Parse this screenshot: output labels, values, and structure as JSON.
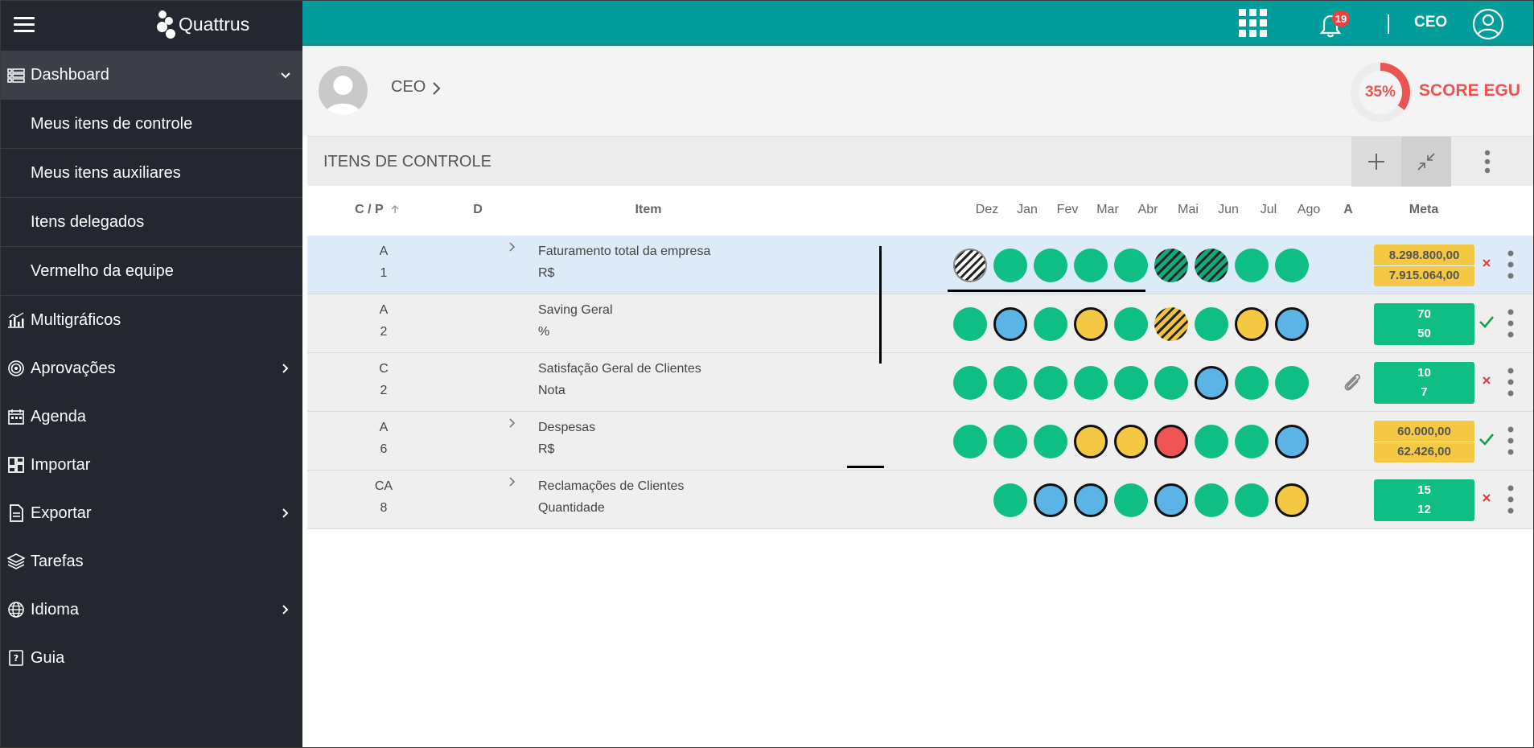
{
  "app": {
    "logo_text": "Quattrus"
  },
  "sidebar": {
    "items": [
      {
        "label": "Dashboard",
        "icon": "list-icon",
        "expanded": true
      },
      {
        "label": "Multigráficos",
        "icon": "bar-chart-icon"
      },
      {
        "label": "Aprovações",
        "icon": "target-icon",
        "chevron": true
      },
      {
        "label": "Agenda",
        "icon": "calendar-icon"
      },
      {
        "label": "Importar",
        "icon": "dashboard-grid-icon"
      },
      {
        "label": "Exportar",
        "icon": "document-icon",
        "chevron": true
      },
      {
        "label": "Tarefas",
        "icon": "layers-icon"
      },
      {
        "label": "Idioma",
        "icon": "globe-icon",
        "chevron": true
      },
      {
        "label": "Guia",
        "icon": "help-book-icon"
      }
    ],
    "dashboard_sub": [
      {
        "label": "Meus itens de controle"
      },
      {
        "label": "Meus itens auxiliares"
      },
      {
        "label": "Itens delegados"
      },
      {
        "label": "Vermelho da equipe"
      }
    ]
  },
  "topbar": {
    "notification_count": "19",
    "user": "CEO",
    "color": "#009d9b"
  },
  "profile": {
    "name": "CEO",
    "score_pct": "35%",
    "score_value": 0.35,
    "score_label": "SCORE EGU",
    "score_color": "#ea5455"
  },
  "control_items": {
    "title": "ITENS DE CONTROLE",
    "columns": {
      "cp": "C / P",
      "d": "D",
      "item": "Item",
      "months": [
        "Dez",
        "Jan",
        "Fev",
        "Mar",
        "Abr",
        "Mai",
        "Jun",
        "Jul",
        "Ago"
      ],
      "a": "A",
      "meta": "Meta"
    },
    "rows": [
      {
        "cp1": "A",
        "cp2": "1",
        "name": "Faturamento total da empresa",
        "unit": "R$",
        "expandable": true,
        "selected": true,
        "dots": [
          "hatch-white",
          "green",
          "green",
          "green",
          "green",
          "hatch-green",
          "hatch-green",
          "green",
          "green"
        ],
        "meta": [
          "8.298.800,00",
          "7.915.064,00"
        ],
        "meta_color": "yellow",
        "status": "cross",
        "attachment": false
      },
      {
        "cp1": "A",
        "cp2": "2",
        "name": "Saving Geral",
        "unit": "%",
        "expandable": false,
        "selected": false,
        "dots": [
          "green",
          "blue",
          "green",
          "yellow",
          "green",
          "hatch-yellow",
          "green",
          "yellow",
          "blue"
        ],
        "meta": [
          "70",
          "50"
        ],
        "meta_color": "green",
        "status": "check",
        "attachment": false
      },
      {
        "cp1": "C",
        "cp2": "2",
        "name": "Satisfação Geral de Clientes",
        "unit": "Nota",
        "expandable": false,
        "selected": false,
        "dots": [
          "green",
          "green",
          "green",
          "green",
          "green",
          "green",
          "blue",
          "green",
          "green"
        ],
        "meta": [
          "10",
          "7"
        ],
        "meta_color": "green",
        "status": "cross",
        "attachment": true
      },
      {
        "cp1": "A",
        "cp2": "6",
        "name": "Despesas",
        "unit": "R$",
        "expandable": true,
        "selected": false,
        "dots": [
          "green",
          "green",
          "green",
          "yellow",
          "yellow",
          "red",
          "green",
          "green",
          "blue"
        ],
        "meta": [
          "60.000,00",
          "62.426,00"
        ],
        "meta_color": "yellow",
        "status": "check",
        "attachment": false
      },
      {
        "cp1": "CA",
        "cp2": "8",
        "name": "Reclamações de Clientes",
        "unit": "Quantidade",
        "expandable": true,
        "selected": false,
        "dots": [
          "none",
          "green",
          "blue",
          "blue",
          "green",
          "blue",
          "green",
          "green",
          "yellow"
        ],
        "meta": [
          "15",
          "12"
        ],
        "meta_color": "green",
        "status": "cross",
        "attachment": false
      }
    ]
  },
  "colors": {
    "green": "#0fbe85",
    "blue": "#5bb4e5",
    "yellow": "#f4c842",
    "red": "#f05454",
    "sidebar_bg": "#24272f"
  }
}
